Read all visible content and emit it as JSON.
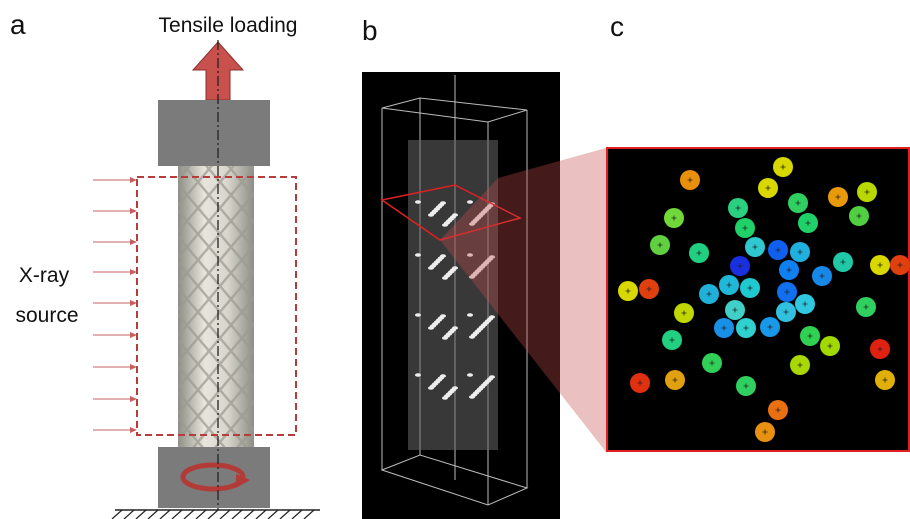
{
  "panels": [
    {
      "label": "a",
      "title": "Tensile loading",
      "source_label": [
        "X-ray",
        "source"
      ]
    },
    {
      "label": "b"
    },
    {
      "label": "c"
    }
  ]
}
